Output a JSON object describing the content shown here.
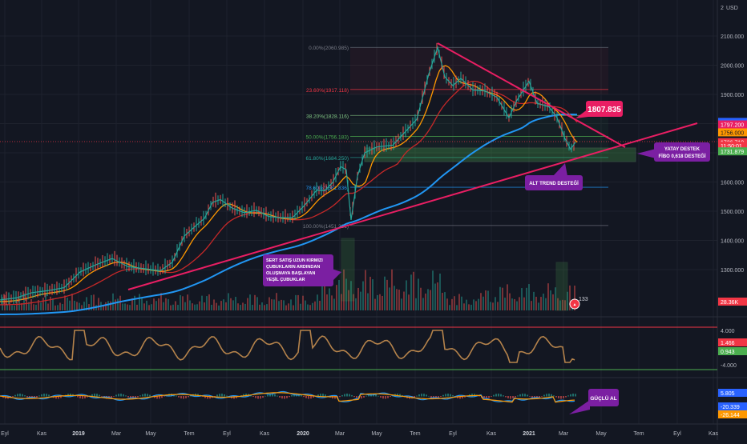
{
  "app": {
    "currency_label": "USD",
    "currency_prefix": "2"
  },
  "chart_data": {
    "type": "line",
    "title": "",
    "price_axis": {
      "ylim": [
        1300,
        2200
      ],
      "ticks": [
        {
          "label": "2100.000",
          "value": 2100
        },
        {
          "label": "2000.000",
          "value": 2000
        },
        {
          "label": "1900.000",
          "value": 1900
        },
        {
          "label": "1800.000",
          "value": 1800
        },
        {
          "label": "1700.000",
          "value": 1700
        },
        {
          "label": "1600.000",
          "value": 1600
        },
        {
          "label": "1500.000",
          "value": 1500
        },
        {
          "label": "1400.000",
          "value": 1400
        },
        {
          "label": "1300.000",
          "value": 1300
        }
      ],
      "badges": [
        {
          "label": "1805.939",
          "value": 1805.9,
          "color": "#2962ff"
        },
        {
          "label": "1797.200",
          "value": 1797.2,
          "color": "#e91e63"
        },
        {
          "label": "1736.710",
          "value": 1736.7,
          "color": "#f23645"
        },
        {
          "label": "11:50:01",
          "value": 1724,
          "color": "#f23645"
        },
        {
          "label": "1731.879",
          "value": 1705,
          "color": "#4caf50"
        },
        {
          "label": "28.36K",
          "value": 1290,
          "color": "#f23645"
        }
      ],
      "orange_badge": {
        "label": "1756.000",
        "value": 1770
      }
    },
    "x_axis_labels": [
      "Eyl",
      "Kas",
      "2019",
      "Mar",
      "May",
      "Tem",
      "Eyl",
      "Kas",
      "2020",
      "Mar",
      "May",
      "Tem",
      "Eyl",
      "Kas",
      "2021",
      "Mar",
      "May",
      "Tem",
      "Eyl",
      "Kas"
    ],
    "fibonacci": [
      {
        "label": "0.00%(2060.985)",
        "value": 2061
      },
      {
        "label": "23.60%(1917.118)",
        "value": 1917
      },
      {
        "label": "38.20%(1828.116)",
        "value": 1828
      },
      {
        "label": "50.00%(1756.183)",
        "value": 1756
      },
      {
        "label": "61.80%(1684.250)",
        "value": 1684
      },
      {
        "label": "78.60%(1581.836)",
        "value": 1582
      },
      {
        "label": "100.00%(1451.281)",
        "value": 1451
      }
    ],
    "price_series": [
      {
        "x": 0,
        "y": 1196
      },
      {
        "x": 20,
        "y": 1203
      },
      {
        "x": 40,
        "y": 1221
      },
      {
        "x": 60,
        "y": 1228
      },
      {
        "x": 80,
        "y": 1238
      },
      {
        "x": 100,
        "y": 1292
      },
      {
        "x": 120,
        "y": 1317
      },
      {
        "x": 140,
        "y": 1338
      },
      {
        "x": 160,
        "y": 1310
      },
      {
        "x": 180,
        "y": 1303
      },
      {
        "x": 200,
        "y": 1296
      },
      {
        "x": 215,
        "y": 1325
      },
      {
        "x": 230,
        "y": 1415
      },
      {
        "x": 245,
        "y": 1452
      },
      {
        "x": 255,
        "y": 1475
      },
      {
        "x": 265,
        "y": 1530
      },
      {
        "x": 275,
        "y": 1540
      },
      {
        "x": 290,
        "y": 1510
      },
      {
        "x": 305,
        "y": 1495
      },
      {
        "x": 320,
        "y": 1503
      },
      {
        "x": 335,
        "y": 1482
      },
      {
        "x": 350,
        "y": 1478
      },
      {
        "x": 365,
        "y": 1478
      },
      {
        "x": 380,
        "y": 1520
      },
      {
        "x": 395,
        "y": 1572
      },
      {
        "x": 405,
        "y": 1570
      },
      {
        "x": 415,
        "y": 1598
      },
      {
        "x": 425,
        "y": 1653
      },
      {
        "x": 432,
        "y": 1642
      },
      {
        "x": 438,
        "y": 1470
      },
      {
        "x": 446,
        "y": 1620
      },
      {
        "x": 455,
        "y": 1700
      },
      {
        "x": 470,
        "y": 1720
      },
      {
        "x": 490,
        "y": 1726
      },
      {
        "x": 505,
        "y": 1770
      },
      {
        "x": 520,
        "y": 1815
      },
      {
        "x": 535,
        "y": 1970
      },
      {
        "x": 546,
        "y": 2061
      },
      {
        "x": 555,
        "y": 1960
      },
      {
        "x": 565,
        "y": 1930
      },
      {
        "x": 575,
        "y": 1955
      },
      {
        "x": 590,
        "y": 1915
      },
      {
        "x": 605,
        "y": 1912
      },
      {
        "x": 620,
        "y": 1890
      },
      {
        "x": 635,
        "y": 1820
      },
      {
        "x": 645,
        "y": 1880
      },
      {
        "x": 660,
        "y": 1945
      },
      {
        "x": 670,
        "y": 1870
      },
      {
        "x": 685,
        "y": 1857
      },
      {
        "x": 695,
        "y": 1820
      },
      {
        "x": 705,
        "y": 1748
      },
      {
        "x": 712,
        "y": 1712
      },
      {
        "x": 718,
        "y": 1736.7
      }
    ],
    "annotations": [
      {
        "text": "1807.835",
        "kind": "price-label"
      },
      {
        "text": "YATAY DESTEK FİBO 0,618 DESTEĞİ",
        "kind": "callout"
      },
      {
        "text": "ALT TREND DESTEĞİ",
        "kind": "callout"
      },
      {
        "text": "SERT SATIŞ UZUN KIRMIZI ÇUBUKLARIN ARDINDAN OLUŞMAYA BAŞLAYAN YEŞİL ÇUBUKLAR",
        "kind": "callout"
      },
      {
        "text": "GÜÇLÜ AL",
        "kind": "callout"
      },
      {
        "text": "133",
        "kind": "marker"
      }
    ],
    "oscillator1": {
      "ticks": [
        {
          "label": "4.000",
          "value": 4
        },
        {
          "label": "-4.000",
          "value": -4
        }
      ],
      "badges": [
        {
          "label": "1.466",
          "value": 1.466,
          "color": "#f23645"
        },
        {
          "label": "0.943",
          "value": 0.943,
          "color": "#4caf50"
        }
      ]
    },
    "oscillator2": {
      "badges": [
        {
          "label": "5.805",
          "value": 5.805,
          "color": "#2962ff"
        },
        {
          "label": "-20.339",
          "value": -20.339,
          "color": "#2962ff"
        },
        {
          "label": "-26.144",
          "value": -26.144,
          "color": "#ff9800"
        }
      ]
    }
  }
}
